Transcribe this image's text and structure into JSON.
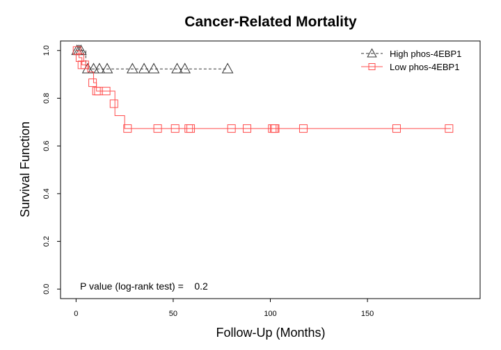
{
  "chart_data": {
    "type": "line",
    "title": "Cancer-Related Mortality",
    "xlabel": "Follow-Up (Months)",
    "ylabel": "Survival Function",
    "xlim": [
      0,
      200
    ],
    "ylim": [
      0.0,
      1.0
    ],
    "x_ticks": [
      "0",
      "50",
      "100",
      "150"
    ],
    "x_tick_values": [
      0,
      50,
      100,
      150
    ],
    "y_ticks": [
      "0.0",
      "0.2",
      "0.4",
      "0.6",
      "0.8",
      "1.0"
    ],
    "y_tick_values": [
      0.0,
      0.2,
      0.4,
      0.6,
      0.8,
      1.0
    ],
    "grid": false,
    "legend_position": "top-right",
    "annotation": "P value (log-rank test) =    0.2",
    "series": [
      {
        "name": "High phos-4EBP1",
        "color": "#333333",
        "line_style": "dashed",
        "marker": "triangle",
        "step_x": [
          0,
          5,
          5,
          78
        ],
        "step_y": [
          1.0,
          1.0,
          0.923,
          0.923
        ],
        "censor_x": [
          0.5,
          1.5,
          2.5,
          6,
          9,
          12,
          16,
          29,
          35,
          40,
          52,
          56,
          78
        ],
        "censor_y": [
          1.0,
          1.0,
          1.0,
          0.923,
          0.923,
          0.923,
          0.923,
          0.923,
          0.923,
          0.923,
          0.923,
          0.923,
          0.923
        ]
      },
      {
        "name": "Low phos-4EBP1",
        "color": "#ff4d4d",
        "line_style": "solid",
        "marker": "square",
        "step_x": [
          0,
          1.5,
          1.5,
          3,
          3,
          6,
          6,
          9,
          9,
          10.5,
          10.5,
          20,
          20,
          25,
          25,
          193
        ],
        "step_y": [
          1.0,
          1.0,
          0.97,
          0.97,
          0.94,
          0.94,
          0.91,
          0.91,
          0.865,
          0.865,
          0.83,
          0.83,
          0.727,
          0.727,
          0.673,
          0.673
        ],
        "censor_x": [
          0.5,
          2,
          3,
          4.5,
          8.5,
          10.5,
          11.5,
          15.5,
          19.5,
          26.5,
          42,
          51,
          58,
          59,
          80,
          88,
          101,
          102,
          102.5,
          117,
          165,
          192
        ],
        "censor_y": [
          1.0,
          0.97,
          0.94,
          0.94,
          0.865,
          0.83,
          0.83,
          0.83,
          0.777,
          0.673,
          0.673,
          0.673,
          0.673,
          0.673,
          0.673,
          0.673,
          0.673,
          0.673,
          0.673,
          0.673,
          0.673,
          0.673
        ]
      }
    ]
  }
}
